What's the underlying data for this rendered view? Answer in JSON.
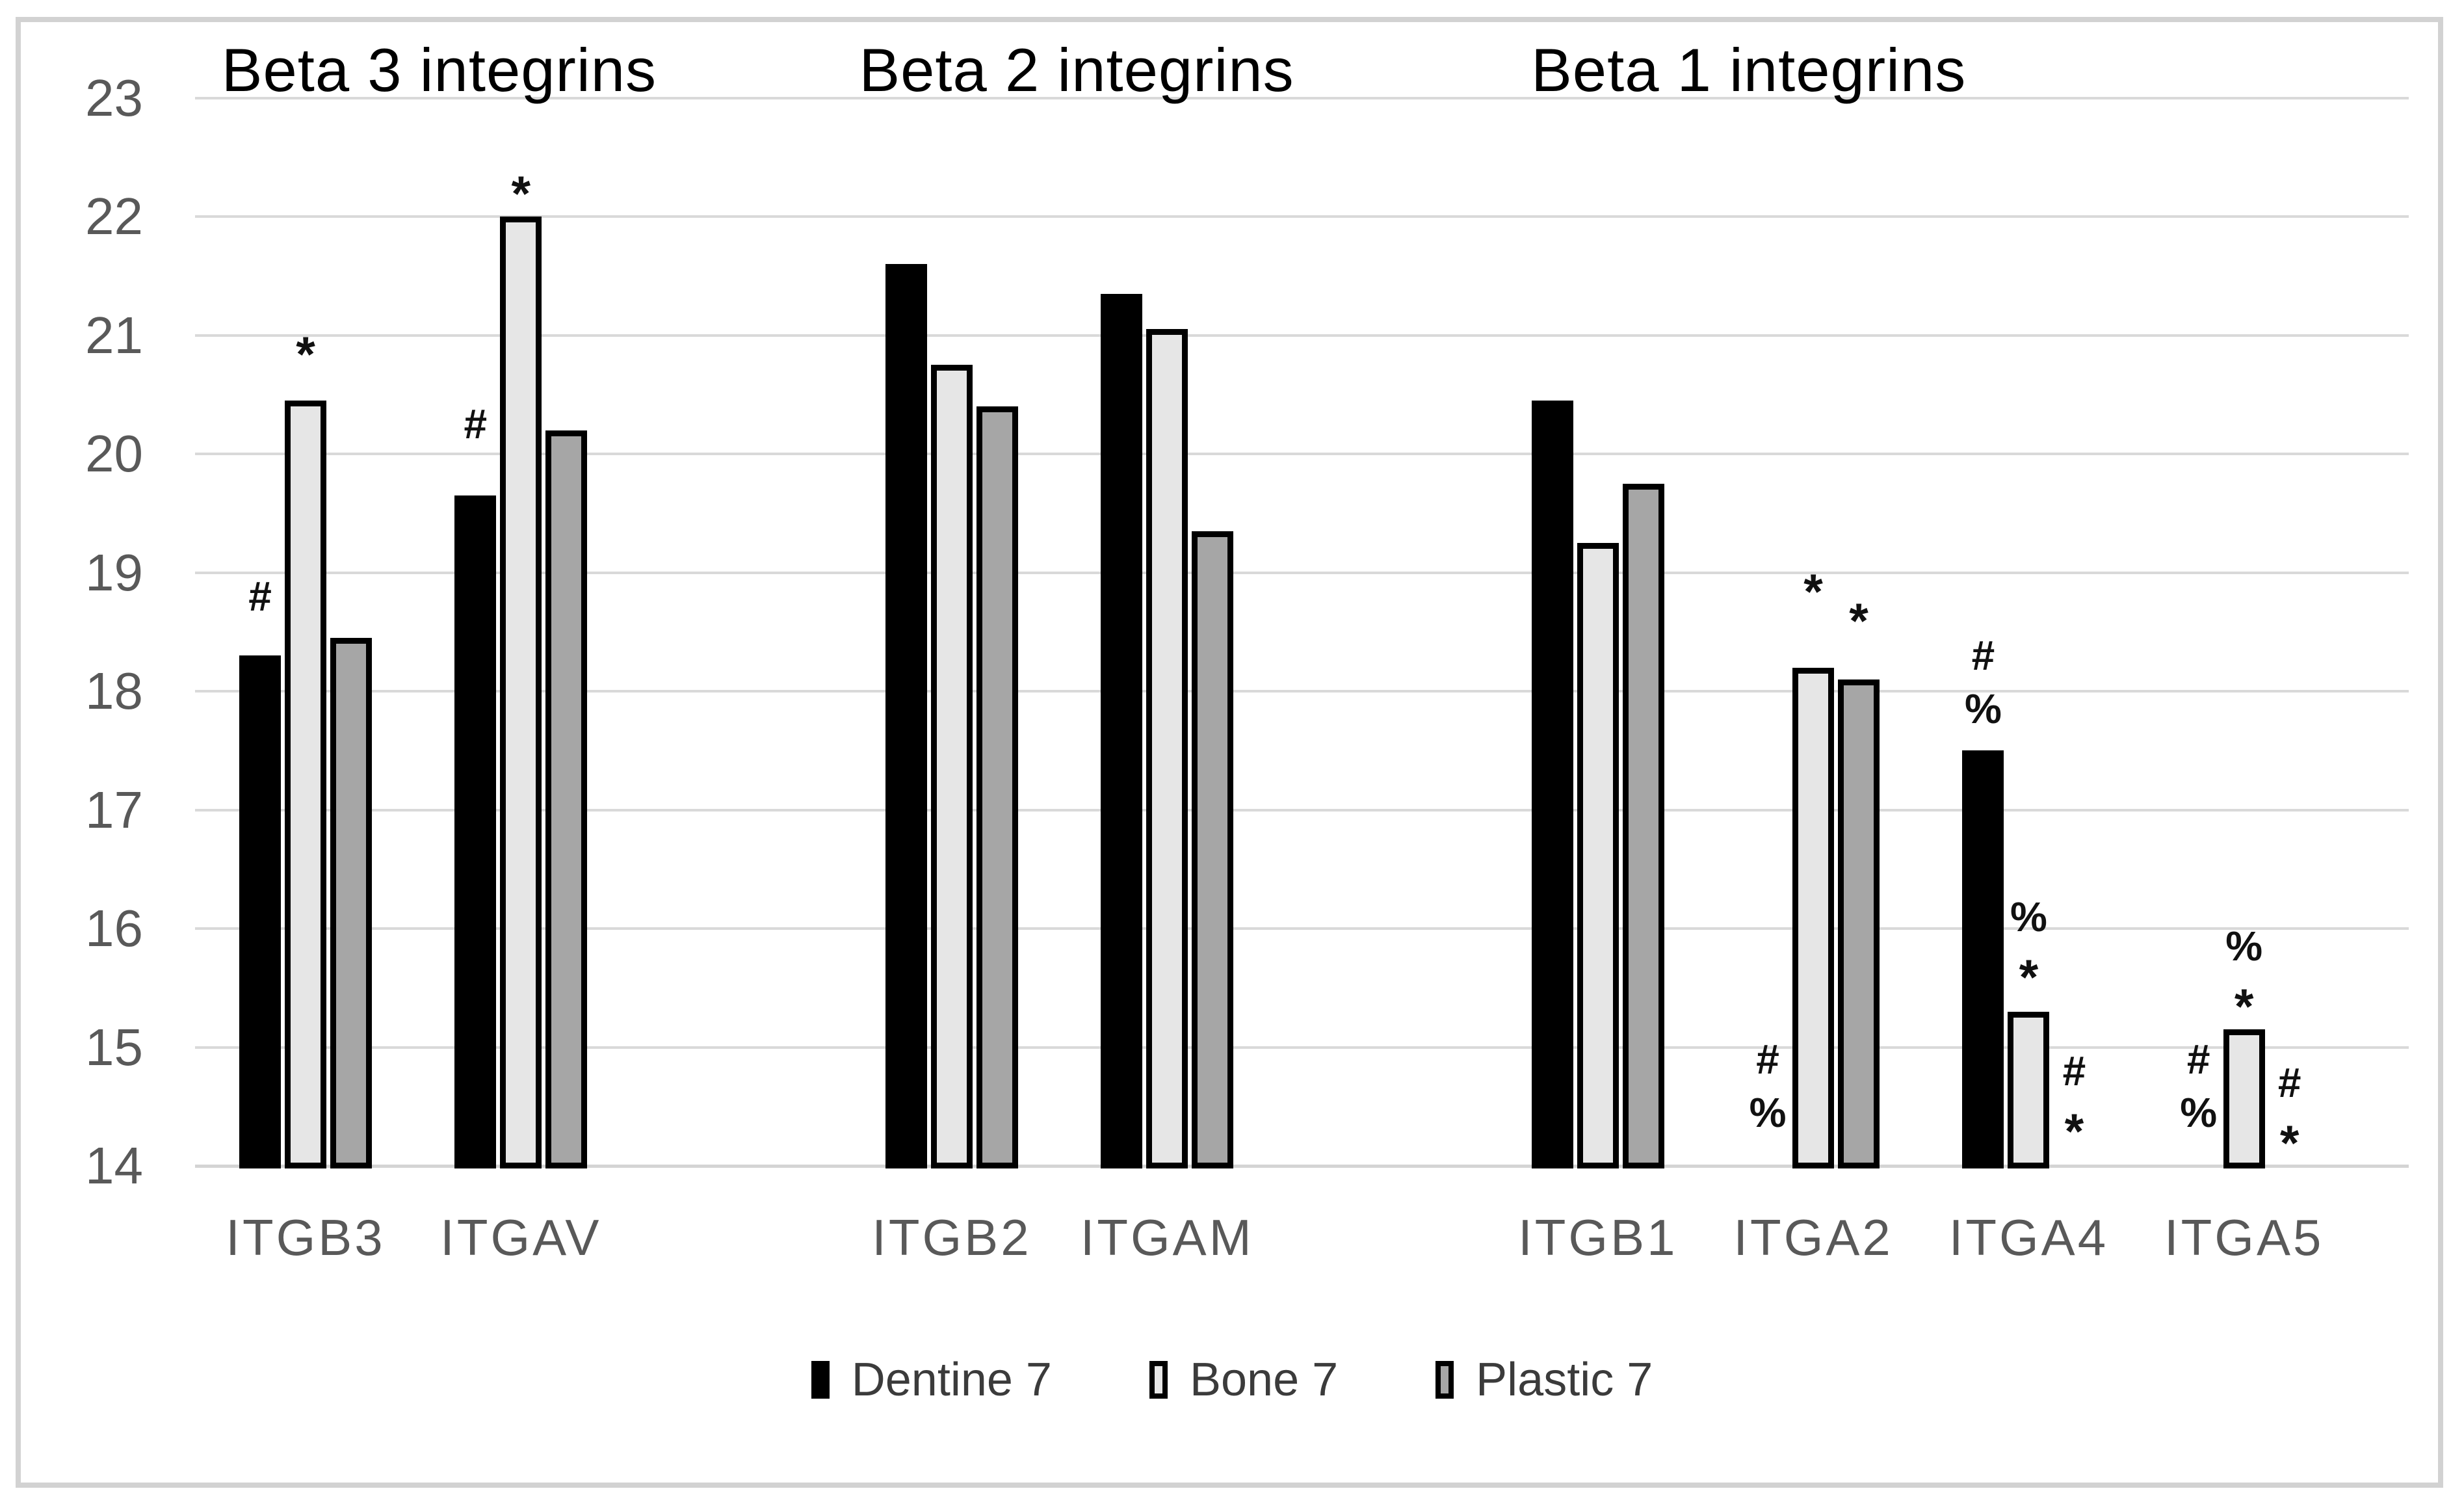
{
  "chart_data": {
    "type": "bar",
    "title": "",
    "xlabel": "",
    "ylabel": "",
    "ylim": [
      14,
      23
    ],
    "grid": true,
    "legend_position": "bottom",
    "yticks": [
      "14",
      "15",
      "16",
      "17",
      "18",
      "19",
      "20",
      "21",
      "22",
      "23"
    ],
    "series": [
      {
        "name": "Dentine 7",
        "fill": "#000000",
        "border": "#000000"
      },
      {
        "name": "Bone 7",
        "fill": "#e6e6e6",
        "border": "#000000"
      },
      {
        "name": "Plastic 7",
        "fill": "#a6a6a6",
        "border": "#000000"
      }
    ],
    "group_titles": [
      {
        "label": "Beta 3 integrins",
        "slot": 0.62
      },
      {
        "label": "Beta 2 integrins",
        "slot": 3.58
      },
      {
        "label": "Beta 1 integrins",
        "slot": 6.7
      }
    ],
    "categories": [
      {
        "label": "ITGB3",
        "slot": 0,
        "group": "Beta 3 integrins",
        "values": [
          18.3,
          20.45,
          18.45
        ],
        "ann": [
          {
            "lines": [
              "#"
            ],
            "v": 18.8
          },
          {
            "lines": [
              "*"
            ],
            "v": 20.9
          },
          null
        ]
      },
      {
        "label": "ITGAV",
        "slot": 1,
        "group": "Beta 3 integrins",
        "values": [
          19.65,
          22.0,
          20.2
        ],
        "ann": [
          {
            "lines": [
              "#"
            ],
            "v": 20.25
          },
          {
            "lines": [
              "*"
            ],
            "v": 22.25
          },
          null
        ]
      },
      {
        "label": "ITGB2",
        "slot": 3,
        "group": "Beta 2 integrins",
        "values": [
          21.6,
          20.75,
          20.4
        ],
        "ann": [
          null,
          null,
          null
        ]
      },
      {
        "label": "ITGAM",
        "slot": 4,
        "group": "Beta 2 integrins",
        "values": [
          21.35,
          21.05,
          19.35
        ],
        "ann": [
          null,
          null,
          null
        ]
      },
      {
        "label": "ITGB1",
        "slot": 6,
        "group": "Beta 1 integrins",
        "values": [
          20.45,
          19.25,
          19.75
        ],
        "ann": [
          null,
          null,
          null
        ]
      },
      {
        "label": "ITGA2",
        "slot": 7,
        "group": "Beta 1 integrins",
        "values": [
          null,
          18.2,
          18.1
        ],
        "ann": [
          {
            "lines": [
              "#",
              "%"
            ],
            "v": 14.9
          },
          {
            "lines": [
              "*"
            ],
            "v": 18.9
          },
          {
            "lines": [
              "*"
            ],
            "v": 18.65
          }
        ]
      },
      {
        "label": "ITGA4",
        "slot": 8,
        "group": "Beta 1 integrins",
        "values": [
          17.5,
          15.3,
          null
        ],
        "ann": [
          {
            "lines": [
              "#",
              "%"
            ],
            "v": 18.3
          },
          {
            "lines": [
              "%",
              "*"
            ],
            "v": 16.1
          },
          {
            "lines": [
              "#",
              "*"
            ],
            "v": 14.8
          }
        ]
      },
      {
        "label": "ITGA5",
        "slot": 9,
        "group": "Beta 1 integrins",
        "values": [
          null,
          15.15,
          null
        ],
        "ann": [
          {
            "lines": [
              "#",
              "%"
            ],
            "v": 14.9
          },
          {
            "lines": [
              "%",
              "*"
            ],
            "v": 15.85
          },
          {
            "lines": [
              "#",
              "*"
            ],
            "v": 14.7
          }
        ]
      }
    ]
  },
  "legend": {
    "items": [
      {
        "label": "Dentine 7"
      },
      {
        "label": "Bone 7"
      },
      {
        "label": "Plastic 7"
      }
    ]
  }
}
